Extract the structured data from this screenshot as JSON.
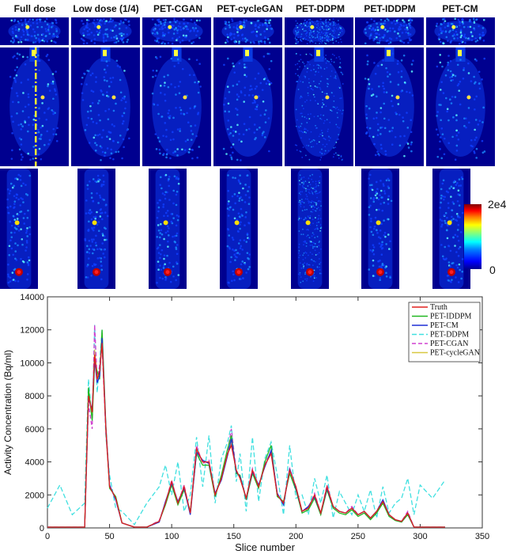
{
  "columns": [
    "Full dose",
    "Low dose (1/4)",
    "PET-CGAN",
    "PET-cycleGAN",
    "PET-DDPM",
    "PET-IDDPM",
    "PET-CM"
  ],
  "colorbar": {
    "max_label": "2e4",
    "min_label": "0",
    "colormap": "jet"
  },
  "chart_data": {
    "type": "line",
    "xlabel": "Slice number",
    "ylabel": "Activity Concentration (Bq/ml)",
    "xlim": [
      0,
      350
    ],
    "ylim": [
      0,
      14000
    ],
    "xticks": [
      0,
      50,
      100,
      150,
      200,
      250,
      300,
      350
    ],
    "yticks": [
      0,
      2000,
      4000,
      6000,
      8000,
      10000,
      12000,
      14000
    ],
    "legend_position": "top-right",
    "x": [
      0,
      10,
      20,
      30,
      33,
      36,
      38,
      40,
      42,
      44,
      47,
      50,
      55,
      60,
      70,
      80,
      90,
      95,
      100,
      105,
      110,
      115,
      120,
      125,
      130,
      135,
      140,
      145,
      148,
      152,
      155,
      160,
      165,
      170,
      175,
      180,
      185,
      190,
      195,
      200,
      205,
      210,
      215,
      220,
      225,
      230,
      235,
      240,
      245,
      250,
      255,
      260,
      265,
      270,
      275,
      280,
      285,
      290,
      295,
      300,
      310,
      320
    ],
    "series": [
      {
        "name": "Truth",
        "color": "#e0201e",
        "dash": "solid",
        "values": [
          50,
          50,
          50,
          50,
          8000,
          7000,
          10500,
          9000,
          9500,
          11200,
          6000,
          2500,
          1800,
          300,
          50,
          50,
          400,
          1500,
          2800,
          1500,
          2500,
          900,
          4800,
          4000,
          4000,
          2000,
          3000,
          4500,
          5000,
          3500,
          3000,
          1800,
          3500,
          2500,
          3800,
          4500,
          2000,
          1500,
          3500,
          2500,
          1000,
          1200,
          2000,
          900,
          2500,
          1300,
          1000,
          900,
          1200,
          800,
          1000,
          600,
          1000,
          1600,
          800,
          500,
          400,
          900,
          50,
          50,
          50,
          50
        ]
      },
      {
        "name": "PET-IDDPM",
        "color": "#22b722",
        "dash": "solid",
        "values": [
          50,
          50,
          50,
          50,
          8500,
          6500,
          10000,
          9500,
          9000,
          12000,
          6200,
          2400,
          1900,
          300,
          50,
          50,
          400,
          1400,
          2600,
          1400,
          2300,
          1000,
          4500,
          3800,
          3800,
          1900,
          3200,
          4800,
          5600,
          3300,
          3200,
          1700,
          3300,
          2400,
          4000,
          5000,
          1900,
          1600,
          3300,
          2300,
          900,
          1100,
          1800,
          800,
          2300,
          1200,
          900,
          800,
          1100,
          700,
          900,
          500,
          900,
          1500,
          700,
          450,
          350,
          800,
          50,
          50,
          50,
          50
        ]
      },
      {
        "name": "PET-CM",
        "color": "#1f2ed6",
        "dash": "solid",
        "values": [
          50,
          50,
          50,
          50,
          7800,
          7200,
          10200,
          8800,
          9200,
          11500,
          6100,
          2600,
          1700,
          300,
          50,
          50,
          350,
          1600,
          2700,
          1600,
          2400,
          800,
          4600,
          4100,
          3900,
          2100,
          2900,
          4400,
          5400,
          3400,
          3100,
          1800,
          3400,
          2600,
          3700,
          4700,
          2100,
          1400,
          3600,
          2400,
          1000,
          1300,
          1900,
          900,
          2400,
          1300,
          1000,
          900,
          1200,
          800,
          1000,
          600,
          1000,
          1700,
          800,
          500,
          400,
          900,
          50,
          50,
          50,
          50
        ]
      },
      {
        "name": "PET-DDPM",
        "color": "#40e0e0",
        "dash": "6,3",
        "values": [
          1200,
          2600,
          800,
          1500,
          9000,
          6500,
          12300,
          8200,
          10000,
          12000,
          5500,
          3200,
          1200,
          1000,
          200,
          1500,
          2500,
          3800,
          2000,
          4000,
          1000,
          2000,
          5500,
          2500,
          5600,
          1500,
          4200,
          5200,
          6200,
          2800,
          4500,
          1000,
          5500,
          1600,
          4200,
          5200,
          3200,
          800,
          5000,
          1800,
          2000,
          800,
          3000,
          1500,
          3200,
          600,
          2200,
          1500,
          800,
          2000,
          1000,
          2300,
          600,
          2500,
          900,
          1500,
          1800,
          3000,
          800,
          2600,
          1800,
          2900
        ]
      },
      {
        "name": "PET-CGAN",
        "color": "#d040d0",
        "dash": "5,3",
        "values": [
          50,
          50,
          50,
          50,
          7500,
          6000,
          12300,
          9000,
          9800,
          11000,
          5800,
          2500,
          1800,
          300,
          50,
          50,
          450,
          1500,
          2900,
          1500,
          2600,
          900,
          5000,
          3900,
          4100,
          2000,
          3100,
          4600,
          6000,
          3400,
          3100,
          1800,
          3600,
          2500,
          3900,
          4600,
          2000,
          1500,
          3600,
          2500,
          1000,
          1200,
          2100,
          900,
          2600,
          1300,
          1000,
          900,
          1300,
          800,
          1000,
          600,
          1000,
          1700,
          800,
          500,
          400,
          1000,
          50,
          50,
          50,
          50
        ]
      },
      {
        "name": "PET-cycleGAN",
        "color": "#d8c840",
        "dash": "solid",
        "values": [
          50,
          50,
          50,
          50,
          8200,
          6800,
          10800,
          9200,
          9300,
          11800,
          5900,
          2500,
          1800,
          300,
          50,
          50,
          400,
          1500,
          2800,
          1500,
          2500,
          900,
          4700,
          4000,
          4000,
          2000,
          3000,
          4500,
          5200,
          3500,
          3000,
          1800,
          3500,
          2500,
          3800,
          4600,
          2000,
          1500,
          3500,
          2500,
          1000,
          1200,
          2000,
          900,
          2500,
          1300,
          1000,
          900,
          1200,
          800,
          1000,
          600,
          1000,
          1600,
          800,
          500,
          400,
          900,
          50,
          50,
          50,
          50
        ]
      }
    ]
  }
}
